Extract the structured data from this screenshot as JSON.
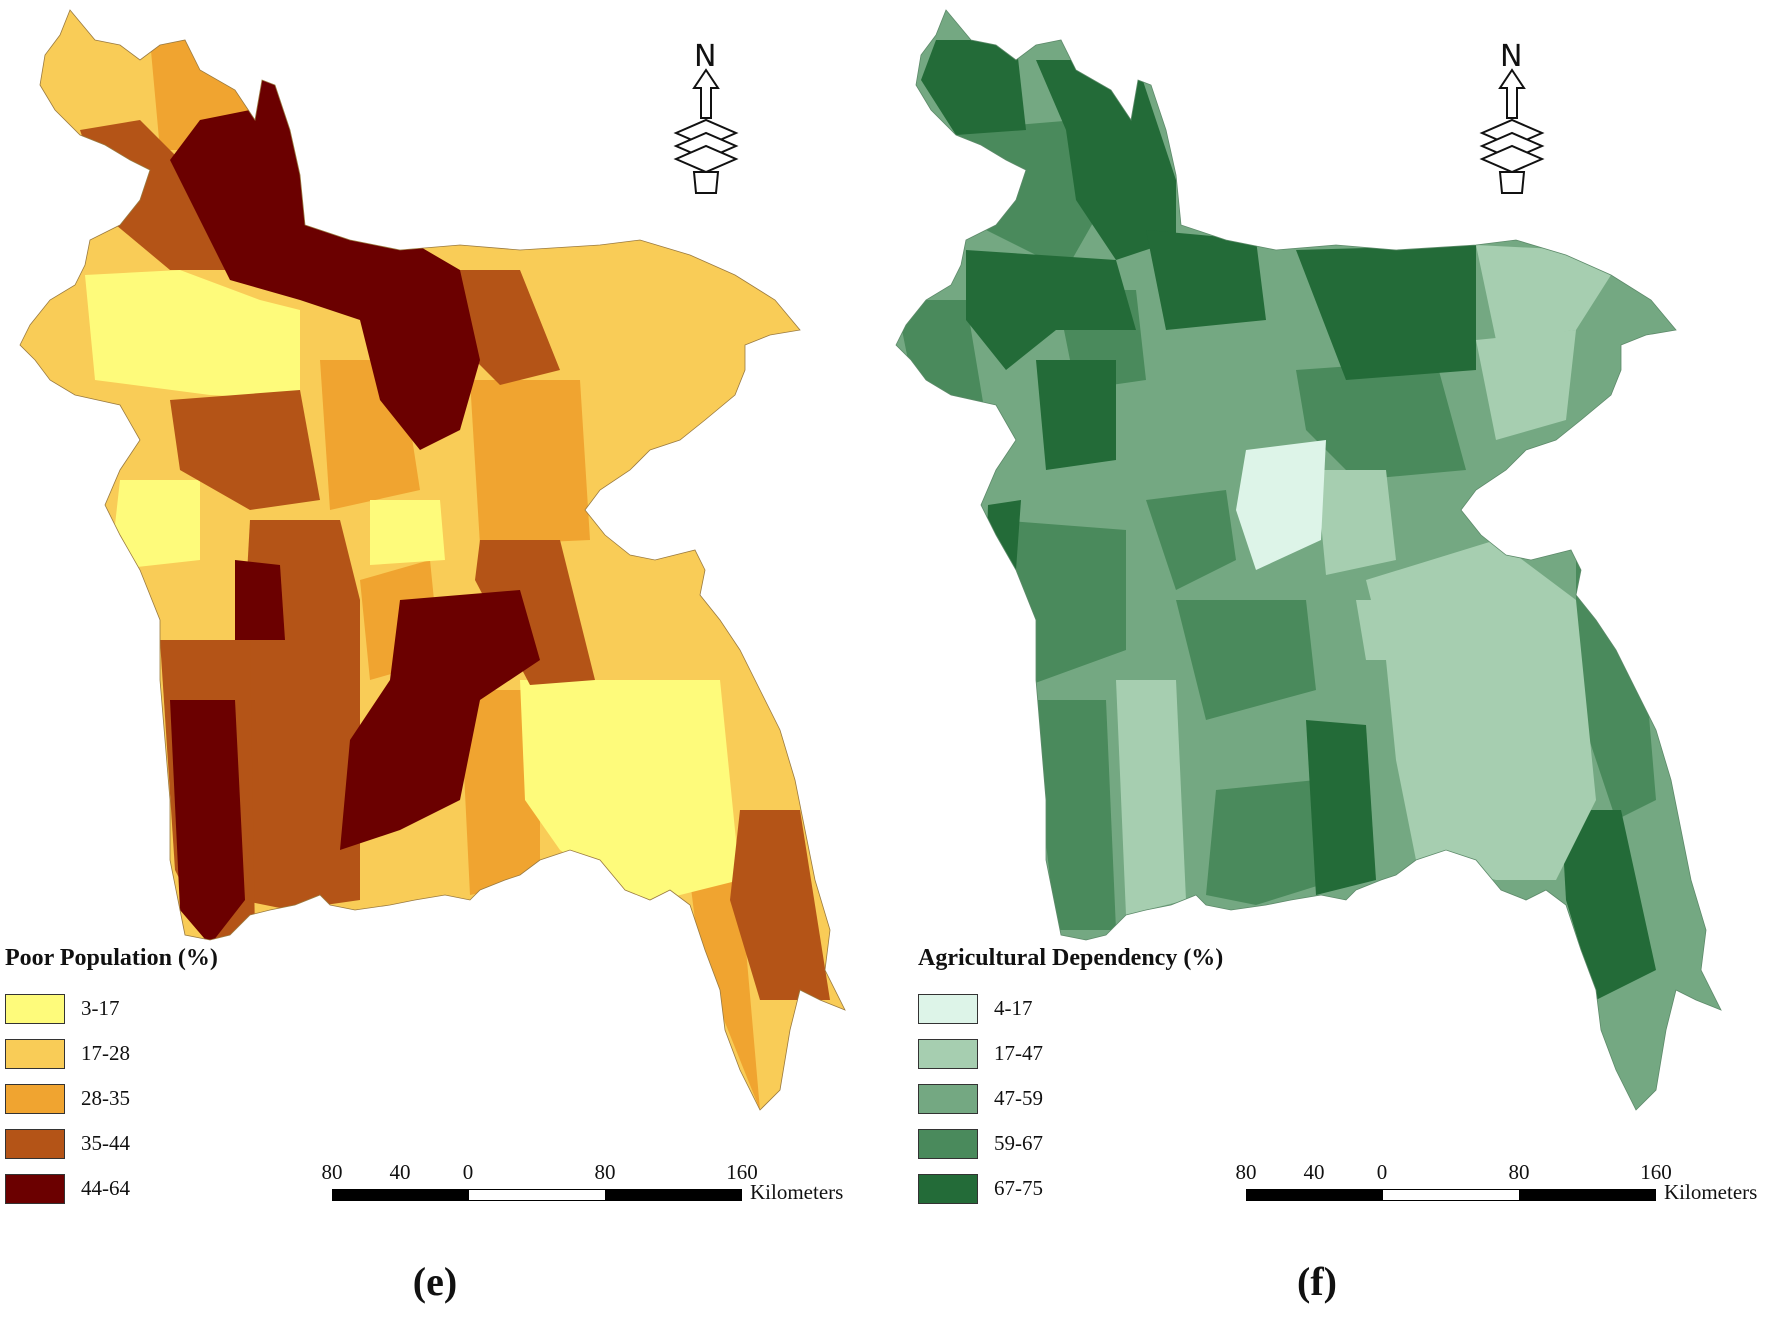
{
  "panels": {
    "e": {
      "label": "(e)",
      "legend": {
        "title": "Poor Population (%)",
        "classes": [
          {
            "label": "3-17",
            "color": "#fefb7b"
          },
          {
            "label": "17-28",
            "color": "#f9cc57"
          },
          {
            "label": "28-35",
            "color": "#f0a430"
          },
          {
            "label": "35-44",
            "color": "#b45417"
          },
          {
            "label": "44-64",
            "color": "#6b0000"
          }
        ]
      }
    },
    "f": {
      "label": "(f)",
      "legend": {
        "title": "Agricultural Dependency (%)",
        "classes": [
          {
            "label": "4-17",
            "color": "#ddf4e8"
          },
          {
            "label": "17-47",
            "color": "#a6ceb0"
          },
          {
            "label": "47-59",
            "color": "#74a882"
          },
          {
            "label": "59-67",
            "color": "#4a8a5c"
          },
          {
            "label": "67-75",
            "color": "#236b38"
          }
        ]
      }
    }
  },
  "scale": {
    "ticks": [
      "80",
      "40",
      "0",
      "80",
      "160"
    ],
    "unit": "Kilometers"
  },
  "north_arrow": {
    "letter": "N",
    "icon": "north-arrow-icon"
  }
}
